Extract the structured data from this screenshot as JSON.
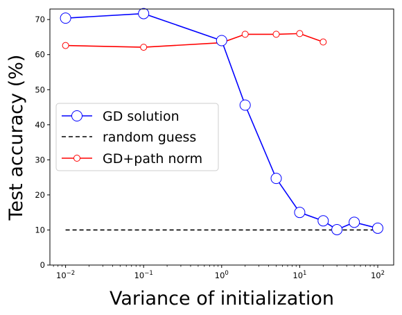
{
  "chart_data": {
    "type": "line",
    "xlabel": "Variance of initialization",
    "ylabel": "Test accuracy (%)",
    "xscale": "log",
    "xlim": [
      0.0063,
      160
    ],
    "ylim": [
      0,
      73
    ],
    "grid": false,
    "legend_position": "center-left",
    "x_ticks": [
      {
        "value": 0.01,
        "base": "10",
        "exp": "−2"
      },
      {
        "value": 0.1,
        "base": "10",
        "exp": "−1"
      },
      {
        "value": 1,
        "base": "10",
        "exp": "0"
      },
      {
        "value": 10,
        "base": "10",
        "exp": "1"
      },
      {
        "value": 100,
        "base": "10",
        "exp": "2"
      }
    ],
    "y_ticks": [
      0,
      10,
      20,
      30,
      40,
      50,
      60,
      70
    ],
    "series": [
      {
        "name": "GD solution",
        "color": "#0000ff",
        "line_style": "solid",
        "marker": "large-open-circle",
        "x": [
          0.01,
          0.1,
          1,
          2,
          5,
          10,
          20,
          30,
          50,
          100
        ],
        "y": [
          70.4,
          71.7,
          64.0,
          45.6,
          24.7,
          15.0,
          12.6,
          10.1,
          12.2,
          10.5
        ]
      },
      {
        "name": "random guess",
        "color": "#000000",
        "line_style": "dashed",
        "marker": "none",
        "x": [
          0.01,
          100
        ],
        "y": [
          10,
          10
        ]
      },
      {
        "name": "GD+path norm",
        "color": "#ff0000",
        "line_style": "solid",
        "marker": "small-open-circle",
        "x": [
          0.01,
          0.1,
          1,
          2,
          5,
          10,
          20
        ],
        "y": [
          62.6,
          62.1,
          63.4,
          65.8,
          65.8,
          66.0,
          63.6
        ]
      }
    ]
  }
}
